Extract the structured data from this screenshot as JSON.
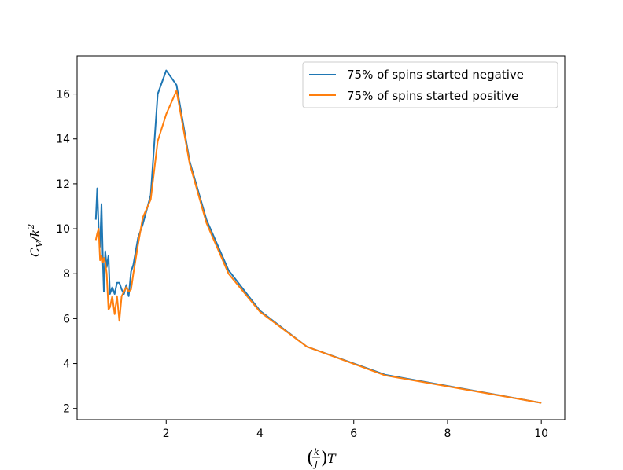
{
  "chart_data": {
    "type": "line",
    "title": "",
    "xlabel": "(k/J)T",
    "ylabel": "C_V/k^2",
    "xlim": [
      0.1,
      10.5
    ],
    "ylim": [
      1.5,
      17.7
    ],
    "x_ticks": [
      2,
      4,
      6,
      8,
      10
    ],
    "y_ticks": [
      2,
      4,
      6,
      8,
      10,
      12,
      14,
      16
    ],
    "grid": false,
    "legend_position": "top-right",
    "series": [
      {
        "name": "75% of spins started negative",
        "color": "#1f77b4",
        "points": [
          [
            0.5,
            10.4
          ],
          [
            0.53,
            11.8
          ],
          [
            0.56,
            10.0
          ],
          [
            0.59,
            9.2
          ],
          [
            0.62,
            11.1
          ],
          [
            0.65,
            8.5
          ],
          [
            0.67,
            7.2
          ],
          [
            0.7,
            9.0
          ],
          [
            0.73,
            8.3
          ],
          [
            0.77,
            8.8
          ],
          [
            0.8,
            7.1
          ],
          [
            0.85,
            7.4
          ],
          [
            0.9,
            7.1
          ],
          [
            0.95,
            7.6
          ],
          [
            1.0,
            7.6
          ],
          [
            1.05,
            7.3
          ],
          [
            1.1,
            7.1
          ],
          [
            1.15,
            7.5
          ],
          [
            1.2,
            7.0
          ],
          [
            1.25,
            8.1
          ],
          [
            1.3,
            8.4
          ],
          [
            1.4,
            9.6
          ],
          [
            1.5,
            10.2
          ],
          [
            1.67,
            11.5
          ],
          [
            1.82,
            16.0
          ],
          [
            2.0,
            17.05
          ],
          [
            2.22,
            16.4
          ],
          [
            2.5,
            13.0
          ],
          [
            2.86,
            10.4
          ],
          [
            3.33,
            8.15
          ],
          [
            4.0,
            6.35
          ],
          [
            5.0,
            4.75
          ],
          [
            6.67,
            3.5
          ],
          [
            10.0,
            2.25
          ]
        ]
      },
      {
        "name": "75% of spins started positive",
        "color": "#ff7f0e",
        "points": [
          [
            0.5,
            9.5
          ],
          [
            0.53,
            9.8
          ],
          [
            0.56,
            10.0
          ],
          [
            0.59,
            8.6
          ],
          [
            0.62,
            8.8
          ],
          [
            0.65,
            8.5
          ],
          [
            0.67,
            8.7
          ],
          [
            0.7,
            8.5
          ],
          [
            0.73,
            8.0
          ],
          [
            0.77,
            6.4
          ],
          [
            0.8,
            6.5
          ],
          [
            0.85,
            7.0
          ],
          [
            0.9,
            6.2
          ],
          [
            0.95,
            7.0
          ],
          [
            1.0,
            5.9
          ],
          [
            1.05,
            7.0
          ],
          [
            1.1,
            7.2
          ],
          [
            1.15,
            7.4
          ],
          [
            1.2,
            7.2
          ],
          [
            1.25,
            7.3
          ],
          [
            1.3,
            8.0
          ],
          [
            1.4,
            9.3
          ],
          [
            1.5,
            10.5
          ],
          [
            1.67,
            11.3
          ],
          [
            1.82,
            13.9
          ],
          [
            2.0,
            15.1
          ],
          [
            2.22,
            16.15
          ],
          [
            2.5,
            12.9
          ],
          [
            2.86,
            10.25
          ],
          [
            3.33,
            8.0
          ],
          [
            4.0,
            6.3
          ],
          [
            5.0,
            4.75
          ],
          [
            6.67,
            3.47
          ],
          [
            10.0,
            2.25
          ]
        ]
      }
    ]
  }
}
